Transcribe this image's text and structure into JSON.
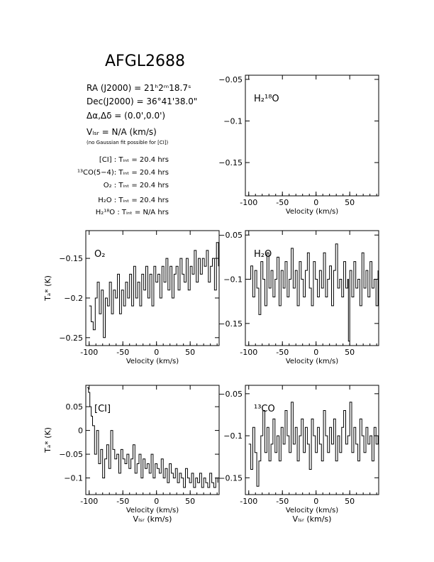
{
  "header": {
    "object": "AFGL2688",
    "ra": "RA (J2000) = 21ʰ2ᵐ18.7ˢ",
    "dec": "Dec(J2000) = 36°41'38.0\"",
    "offset": "Δα,Δδ = (0.0',0.0')",
    "vlsr": "Vₗₛᵣ = N/A (km/s)",
    "fit_note": "(no Gaussian fit possible for [CI])",
    "integrations": [
      "[CI] : Tᵢₙₜ = 20.4 hrs",
      "¹³CO(5−4): Tᵢₙₜ = 20.4 hrs",
      "O₂ : Tᵢₙₜ = 20.4 hrs",
      "H₂O : Tᵢₙₜ = 20.4 hrs",
      "H₂¹⁸O : Tᵢₙₜ = N/A hrs"
    ]
  },
  "chart_data": [
    {
      "type": "line",
      "id": "h218o",
      "title": "H₂¹⁸O",
      "xlabel": "Velocity (km/s)",
      "ylabel": "",
      "xlim": [
        -105,
        93
      ],
      "ylim": [
        -0.19,
        -0.045
      ],
      "xticks": [
        -100,
        -50,
        0,
        50
      ],
      "yticks": [
        -0.05,
        -0.1,
        -0.15
      ],
      "ytick_labels": [
        "−0.05",
        "−0.1",
        "−0.15"
      ],
      "series": []
    },
    {
      "type": "line",
      "id": "o2",
      "title": "O₂",
      "xlabel": "Velocity (km/s)",
      "ylabel": "Tₐ* (K)",
      "xlim": [
        -105,
        93
      ],
      "ylim": [
        -0.26,
        -0.115
      ],
      "xticks": [
        -100,
        -50,
        0,
        50
      ],
      "yticks": [
        -0.15,
        -0.2,
        -0.25
      ],
      "ytick_labels": [
        "−0.15",
        "−0.2",
        "−0.25"
      ],
      "series": [
        {
          "x": [
            -100,
            -97,
            -94,
            -91,
            -88,
            -85,
            -82,
            -79,
            -76,
            -73,
            -70,
            -67,
            -64,
            -61,
            -58,
            -55,
            -52,
            -49,
            -46,
            -43,
            -40,
            -37,
            -34,
            -31,
            -28,
            -25,
            -22,
            -19,
            -16,
            -13,
            -10,
            -7,
            -4,
            -1,
            2,
            5,
            8,
            11,
            14,
            17,
            20,
            23,
            26,
            29,
            32,
            35,
            38,
            41,
            44,
            47,
            50,
            53,
            56,
            59,
            62,
            65,
            68,
            71,
            74,
            77,
            80,
            83,
            86,
            89,
            92
          ],
          "y": [
            -0.21,
            -0.23,
            -0.24,
            -0.2,
            -0.18,
            -0.22,
            -0.19,
            -0.25,
            -0.2,
            -0.21,
            -0.18,
            -0.22,
            -0.19,
            -0.2,
            -0.17,
            -0.22,
            -0.19,
            -0.21,
            -0.18,
            -0.2,
            -0.17,
            -0.21,
            -0.16,
            -0.2,
            -0.18,
            -0.21,
            -0.17,
            -0.19,
            -0.16,
            -0.2,
            -0.17,
            -0.21,
            -0.16,
            -0.18,
            -0.17,
            -0.2,
            -0.16,
            -0.18,
            -0.15,
            -0.19,
            -0.16,
            -0.2,
            -0.17,
            -0.16,
            -0.19,
            -0.15,
            -0.17,
            -0.18,
            -0.15,
            -0.19,
            -0.16,
            -0.17,
            -0.14,
            -0.18,
            -0.15,
            -0.17,
            -0.15,
            -0.16,
            -0.14,
            -0.18,
            -0.16,
            -0.15,
            -0.19,
            -0.13,
            -0.16
          ]
        }
      ]
    },
    {
      "type": "line",
      "id": "h2o",
      "title": "H₂O",
      "xlabel": "Velocity (km/s)",
      "ylabel": "",
      "xlim": [
        -105,
        93
      ],
      "ylim": [
        -0.175,
        -0.045
      ],
      "xticks": [
        -100,
        -50,
        0,
        50
      ],
      "yticks": [
        -0.05,
        -0.1,
        -0.15
      ],
      "ytick_labels": [
        "−0.05",
        "−0.1",
        "−0.15"
      ],
      "series": [
        {
          "x": [
            -100,
            -97,
            -94,
            -91,
            -88,
            -85,
            -82,
            -79,
            -76,
            -73,
            -70,
            -67,
            -64,
            -61,
            -58,
            -55,
            -52,
            -49,
            -46,
            -43,
            -40,
            -37,
            -34,
            -31,
            -28,
            -25,
            -22,
            -19,
            -16,
            -13,
            -10,
            -7,
            -4,
            -1,
            2,
            5,
            8,
            11,
            14,
            17,
            20,
            23,
            26,
            29,
            32,
            35,
            38,
            41,
            44,
            47,
            48,
            50,
            53,
            56,
            59,
            62,
            65,
            68,
            71,
            74,
            77,
            80,
            83,
            86,
            89,
            92
          ],
          "y": [
            -0.1,
            -0.085,
            -0.12,
            -0.09,
            -0.11,
            -0.14,
            -0.08,
            -0.1,
            -0.13,
            -0.07,
            -0.11,
            -0.09,
            -0.12,
            -0.1,
            -0.075,
            -0.13,
            -0.09,
            -0.11,
            -0.08,
            -0.12,
            -0.1,
            -0.065,
            -0.11,
            -0.09,
            -0.13,
            -0.08,
            -0.1,
            -0.12,
            -0.09,
            -0.07,
            -0.11,
            -0.13,
            -0.08,
            -0.1,
            -0.12,
            -0.09,
            -0.11,
            -0.07,
            -0.12,
            -0.1,
            -0.085,
            -0.13,
            -0.09,
            -0.06,
            -0.11,
            -0.1,
            -0.12,
            -0.08,
            -0.11,
            -0.1,
            -0.17,
            -0.09,
            -0.12,
            -0.08,
            -0.11,
            -0.1,
            -0.13,
            -0.07,
            -0.11,
            -0.09,
            -0.12,
            -0.08,
            -0.11,
            -0.1,
            -0.13,
            -0.09
          ]
        }
      ]
    },
    {
      "type": "line",
      "id": "ci",
      "title": "[CI]",
      "xlabel": "Velocity (km/s)",
      "xlabel2": "Vₗₛᵣ (km/s)",
      "ylabel": "Tₐ* (K)",
      "xlim": [
        -105,
        93
      ],
      "ylim": [
        -0.135,
        0.095
      ],
      "xticks": [
        -100,
        -50,
        0,
        50
      ],
      "yticks": [
        0.05,
        0,
        -0.05,
        -0.1
      ],
      "ytick_labels": [
        "0.05",
        "0",
        "−0.05",
        "−0.1"
      ],
      "series": [
        {
          "x": [
            -103,
            -101,
            -99,
            -97,
            -95,
            -92,
            -89,
            -86,
            -83,
            -80,
            -77,
            -74,
            -71,
            -68,
            -65,
            -62,
            -59,
            -56,
            -53,
            -50,
            -47,
            -44,
            -41,
            -38,
            -35,
            -32,
            -29,
            -26,
            -23,
            -20,
            -17,
            -14,
            -11,
            -8,
            -5,
            -2,
            1,
            4,
            7,
            10,
            13,
            16,
            19,
            22,
            25,
            28,
            31,
            34,
            37,
            40,
            43,
            46,
            49,
            52,
            55,
            58,
            61,
            64,
            67,
            70,
            73,
            76,
            79,
            82,
            85,
            88,
            91
          ],
          "y": [
            0.09,
            0.08,
            0.05,
            0.03,
            0.01,
            -0.05,
            0.0,
            -0.07,
            -0.04,
            -0.1,
            -0.06,
            -0.03,
            -0.08,
            0.0,
            -0.04,
            -0.06,
            -0.05,
            -0.09,
            -0.04,
            -0.06,
            -0.07,
            -0.05,
            -0.08,
            -0.06,
            -0.03,
            -0.09,
            -0.07,
            -0.05,
            -0.1,
            -0.06,
            -0.08,
            -0.07,
            -0.09,
            -0.05,
            -0.1,
            -0.07,
            -0.08,
            -0.09,
            -0.06,
            -0.1,
            -0.08,
            -0.11,
            -0.07,
            -0.09,
            -0.1,
            -0.08,
            -0.11,
            -0.09,
            -0.1,
            -0.12,
            -0.08,
            -0.1,
            -0.11,
            -0.09,
            -0.12,
            -0.1,
            -0.11,
            -0.09,
            -0.12,
            -0.1,
            -0.11,
            -0.12,
            -0.09,
            -0.11,
            -0.12,
            -0.1,
            -0.11
          ]
        }
      ]
    },
    {
      "type": "line",
      "id": "13co",
      "title": "¹³CO",
      "xlabel": "Velocity (km/s)",
      "xlabel2": "Vₗₛᵣ (km/s)",
      "ylabel": "",
      "xlim": [
        -105,
        93
      ],
      "ylim": [
        -0.17,
        -0.04
      ],
      "xticks": [
        -100,
        -50,
        0,
        50
      ],
      "yticks": [
        -0.05,
        -0.1,
        -0.15
      ],
      "ytick_labels": [
        "−0.05",
        "−0.1",
        "−0.15"
      ],
      "series": [
        {
          "x": [
            -100,
            -97,
            -94,
            -91,
            -88,
            -85,
            -82,
            -79,
            -76,
            -73,
            -70,
            -67,
            -64,
            -61,
            -58,
            -55,
            -52,
            -49,
            -46,
            -43,
            -40,
            -37,
            -34,
            -31,
            -28,
            -25,
            -22,
            -19,
            -16,
            -13,
            -10,
            -7,
            -4,
            -1,
            2,
            5,
            8,
            11,
            14,
            17,
            20,
            23,
            26,
            29,
            32,
            35,
            38,
            41,
            44,
            47,
            50,
            53,
            56,
            59,
            62,
            65,
            68,
            71,
            74,
            77,
            80,
            83,
            86,
            89,
            92
          ],
          "y": [
            -0.11,
            -0.14,
            -0.09,
            -0.12,
            -0.16,
            -0.13,
            -0.1,
            -0.07,
            -0.12,
            -0.09,
            -0.13,
            -0.11,
            -0.08,
            -0.12,
            -0.1,
            -0.13,
            -0.09,
            -0.11,
            -0.07,
            -0.1,
            -0.12,
            -0.06,
            -0.11,
            -0.09,
            -0.13,
            -0.1,
            -0.08,
            -0.12,
            -0.09,
            -0.11,
            -0.14,
            -0.08,
            -0.1,
            -0.12,
            -0.09,
            -0.11,
            -0.13,
            -0.07,
            -0.1,
            -0.12,
            -0.09,
            -0.11,
            -0.08,
            -0.13,
            -0.1,
            -0.12,
            -0.09,
            -0.07,
            -0.11,
            -0.1,
            -0.06,
            -0.12,
            -0.09,
            -0.11,
            -0.13,
            -0.08,
            -0.1,
            -0.12,
            -0.09,
            -0.11,
            -0.1,
            -0.13,
            -0.09,
            -0.11,
            -0.1
          ]
        }
      ]
    }
  ]
}
